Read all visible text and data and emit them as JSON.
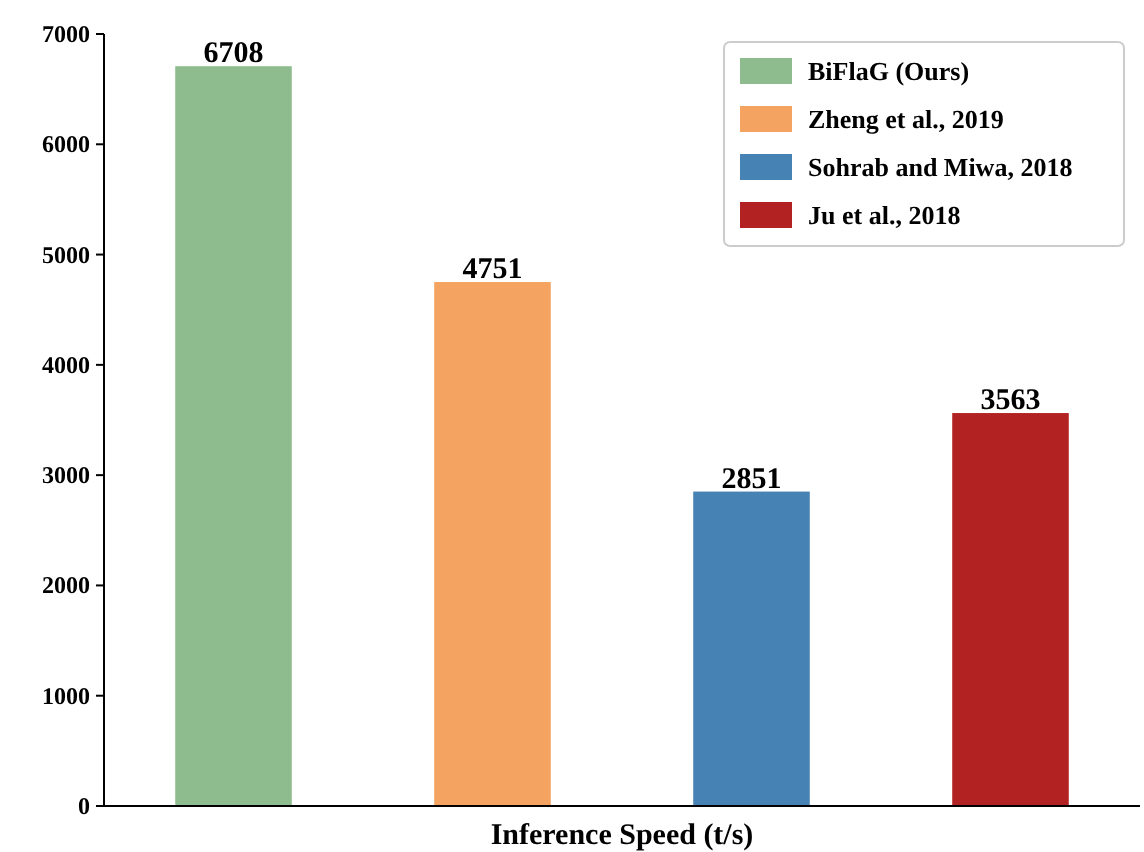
{
  "chart_data": {
    "type": "bar",
    "xlabel": "Inference Speed (t/s)",
    "categories": [
      null,
      null,
      null,
      null
    ],
    "series": [
      {
        "name": "BiFlaG (Ours)",
        "color": "#8fbc8f",
        "values": [
          6708,
          null,
          null,
          null
        ]
      },
      {
        "name": "Zheng et al., 2019",
        "color": "#f4a460",
        "values": [
          null,
          4751,
          null,
          null
        ]
      },
      {
        "name": "Sohrab and Miwa, 2018",
        "color": "#4682b4",
        "values": [
          null,
          null,
          2851,
          null
        ]
      },
      {
        "name": "Ju et al., 2018",
        "color": "#b22222",
        "values": [
          null,
          null,
          null,
          3563
        ]
      }
    ],
    "ylim": [
      0,
      7000
    ],
    "yticks": [
      0,
      1000,
      2000,
      3000,
      4000,
      5000,
      6000,
      7000
    ],
    "data_labels": true,
    "legend": "top right",
    "grid": false
  }
}
